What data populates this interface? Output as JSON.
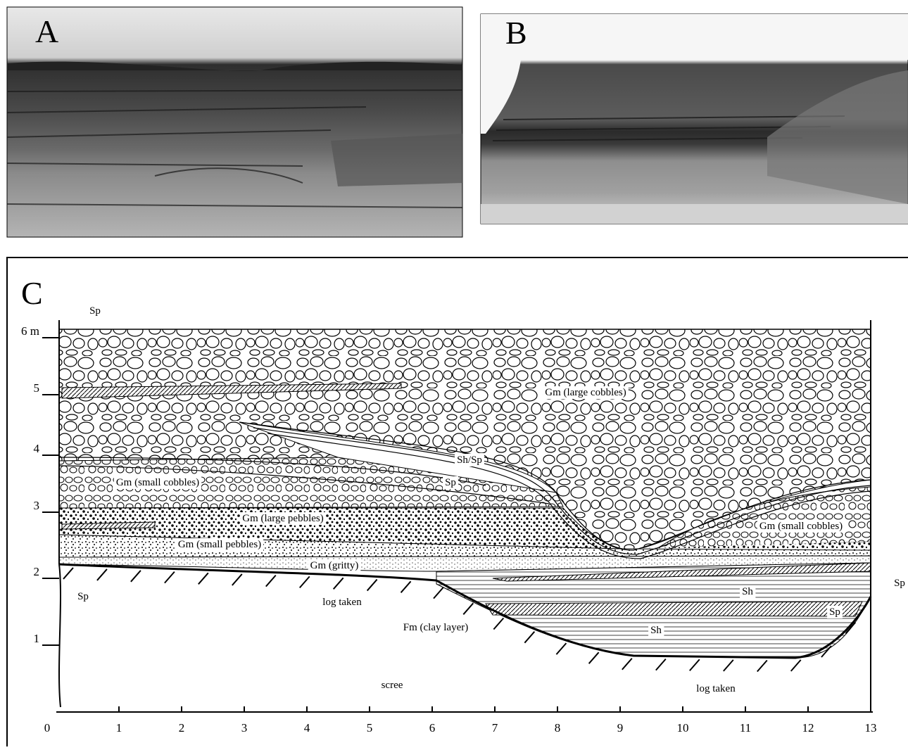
{
  "panels": {
    "a": {
      "label": "A"
    },
    "b": {
      "label": "B"
    },
    "c": {
      "label": "C",
      "y_axis": [
        "1",
        "2",
        "3",
        "4",
        "5",
        "6 m"
      ],
      "x_axis": [
        "0",
        "1",
        "2",
        "3",
        "4",
        "5",
        "6",
        "7",
        "8",
        "9",
        "10",
        "11",
        "12",
        "13"
      ],
      "annotations": [
        "Sp",
        "Gm (large cobbles)",
        "Sh/Sp",
        "Sp",
        "Gm (small cobbles)",
        "Gm (large pebbles)",
        "Gm (small pebbles)",
        "Gm (gritty)",
        "Gm (small cobbles)",
        "Sp",
        "Sh",
        "Sp",
        "Sh",
        "Sp",
        "log taken",
        "Fm (clay layer)",
        "scree",
        "log taken"
      ]
    }
  }
}
